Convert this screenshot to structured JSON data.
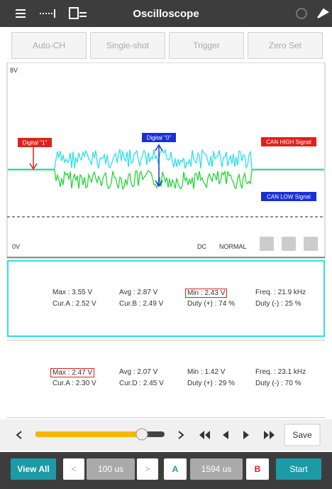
{
  "header": {
    "title": "Oscilloscope"
  },
  "toolbar": [
    "Auto-CH",
    "Single-shot",
    "Trigger",
    "Zero Set"
  ],
  "scope": {
    "top_label": "8V",
    "bottom_label": "0V",
    "coupling": "DC",
    "mode": "NORMAL",
    "annotations": {
      "digital_one": "Digital \"1\"",
      "digital_zero": "Digital \"0\"",
      "can_high": "CAN HIGH Signal",
      "can_low": "CAN LOW Signal"
    }
  },
  "panels": [
    {
      "rows": [
        [
          "Max : 3.55 V",
          "Avg : 2.87 V",
          "Min : 2.43 V",
          "Freq. : 21.9 kHz"
        ],
        [
          "Cur.A : 2.52 V",
          "Cur.B : 2.49 V",
          "Duty (+) : 74 %",
          "Duty (-) : 25 %"
        ]
      ]
    },
    {
      "rows": [
        [
          "Max : 2.47 V",
          "Avg : 2.07 V",
          "Min : 1.42 V",
          "Freq. : 23.1 kHz"
        ],
        [
          "Cur.A : 2.30 V",
          "Cur.D : 2.45 V",
          "Duty (+) : 29 %",
          "Duty (-) : 70 %"
        ]
      ]
    }
  ],
  "controls": {
    "save": "Save"
  },
  "footer": {
    "view_all": "View All",
    "time_div": "100 us",
    "cursor_a": "A",
    "cursor_pos": "1594 us",
    "cursor_b": "B",
    "start": "Start"
  }
}
